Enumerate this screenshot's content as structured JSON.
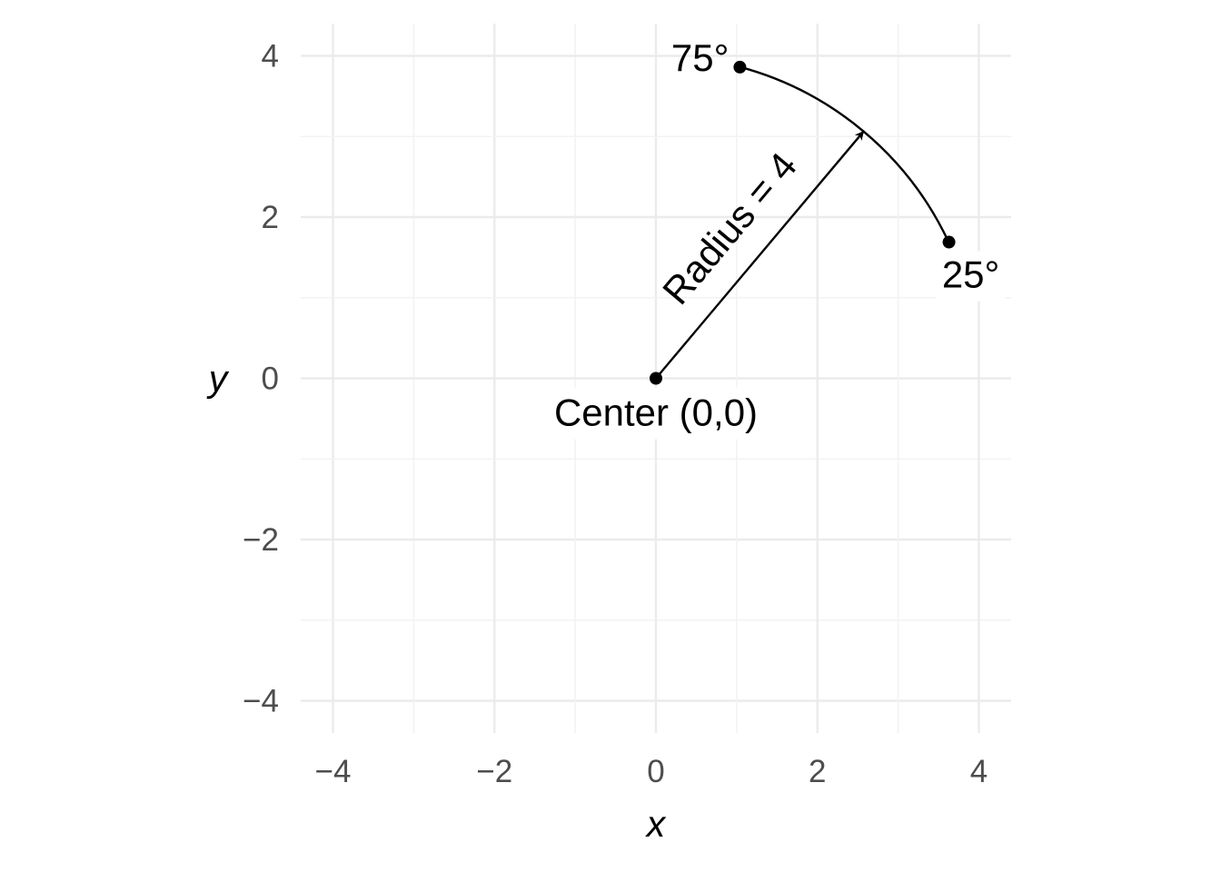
{
  "chart_data": {
    "type": "scatter",
    "title": "",
    "xlabel": "x",
    "ylabel": "y",
    "xlim": [
      -4.4,
      4.4
    ],
    "ylim": [
      -4.4,
      4.4
    ],
    "x_ticks": [
      -4,
      -2,
      0,
      2,
      4
    ],
    "y_ticks": [
      -4,
      -2,
      0,
      2,
      4
    ],
    "x_tick_labels": [
      "−4",
      "−2",
      "0",
      "2",
      "4"
    ],
    "y_tick_labels": [
      "−4",
      "−2",
      "0",
      "2",
      "4"
    ],
    "grid": true,
    "center": {
      "x": 0,
      "y": 0,
      "label": "Center (0,0)"
    },
    "radius": 4,
    "radius_label": "Radius = 4",
    "arc": {
      "start_deg": 25,
      "end_deg": 75
    },
    "points": [
      {
        "name": "center",
        "x": 0,
        "y": 0,
        "label": "Center (0,0)"
      },
      {
        "name": "25-deg",
        "x": 3.63,
        "y": 1.69,
        "label": "25°"
      },
      {
        "name": "75-deg",
        "x": 1.04,
        "y": 3.86,
        "label": "75°"
      }
    ],
    "radius_arrow": {
      "from_deg": 50,
      "x0": 0,
      "y0": 0,
      "x1": 2.57,
      "y1": 3.06
    }
  }
}
